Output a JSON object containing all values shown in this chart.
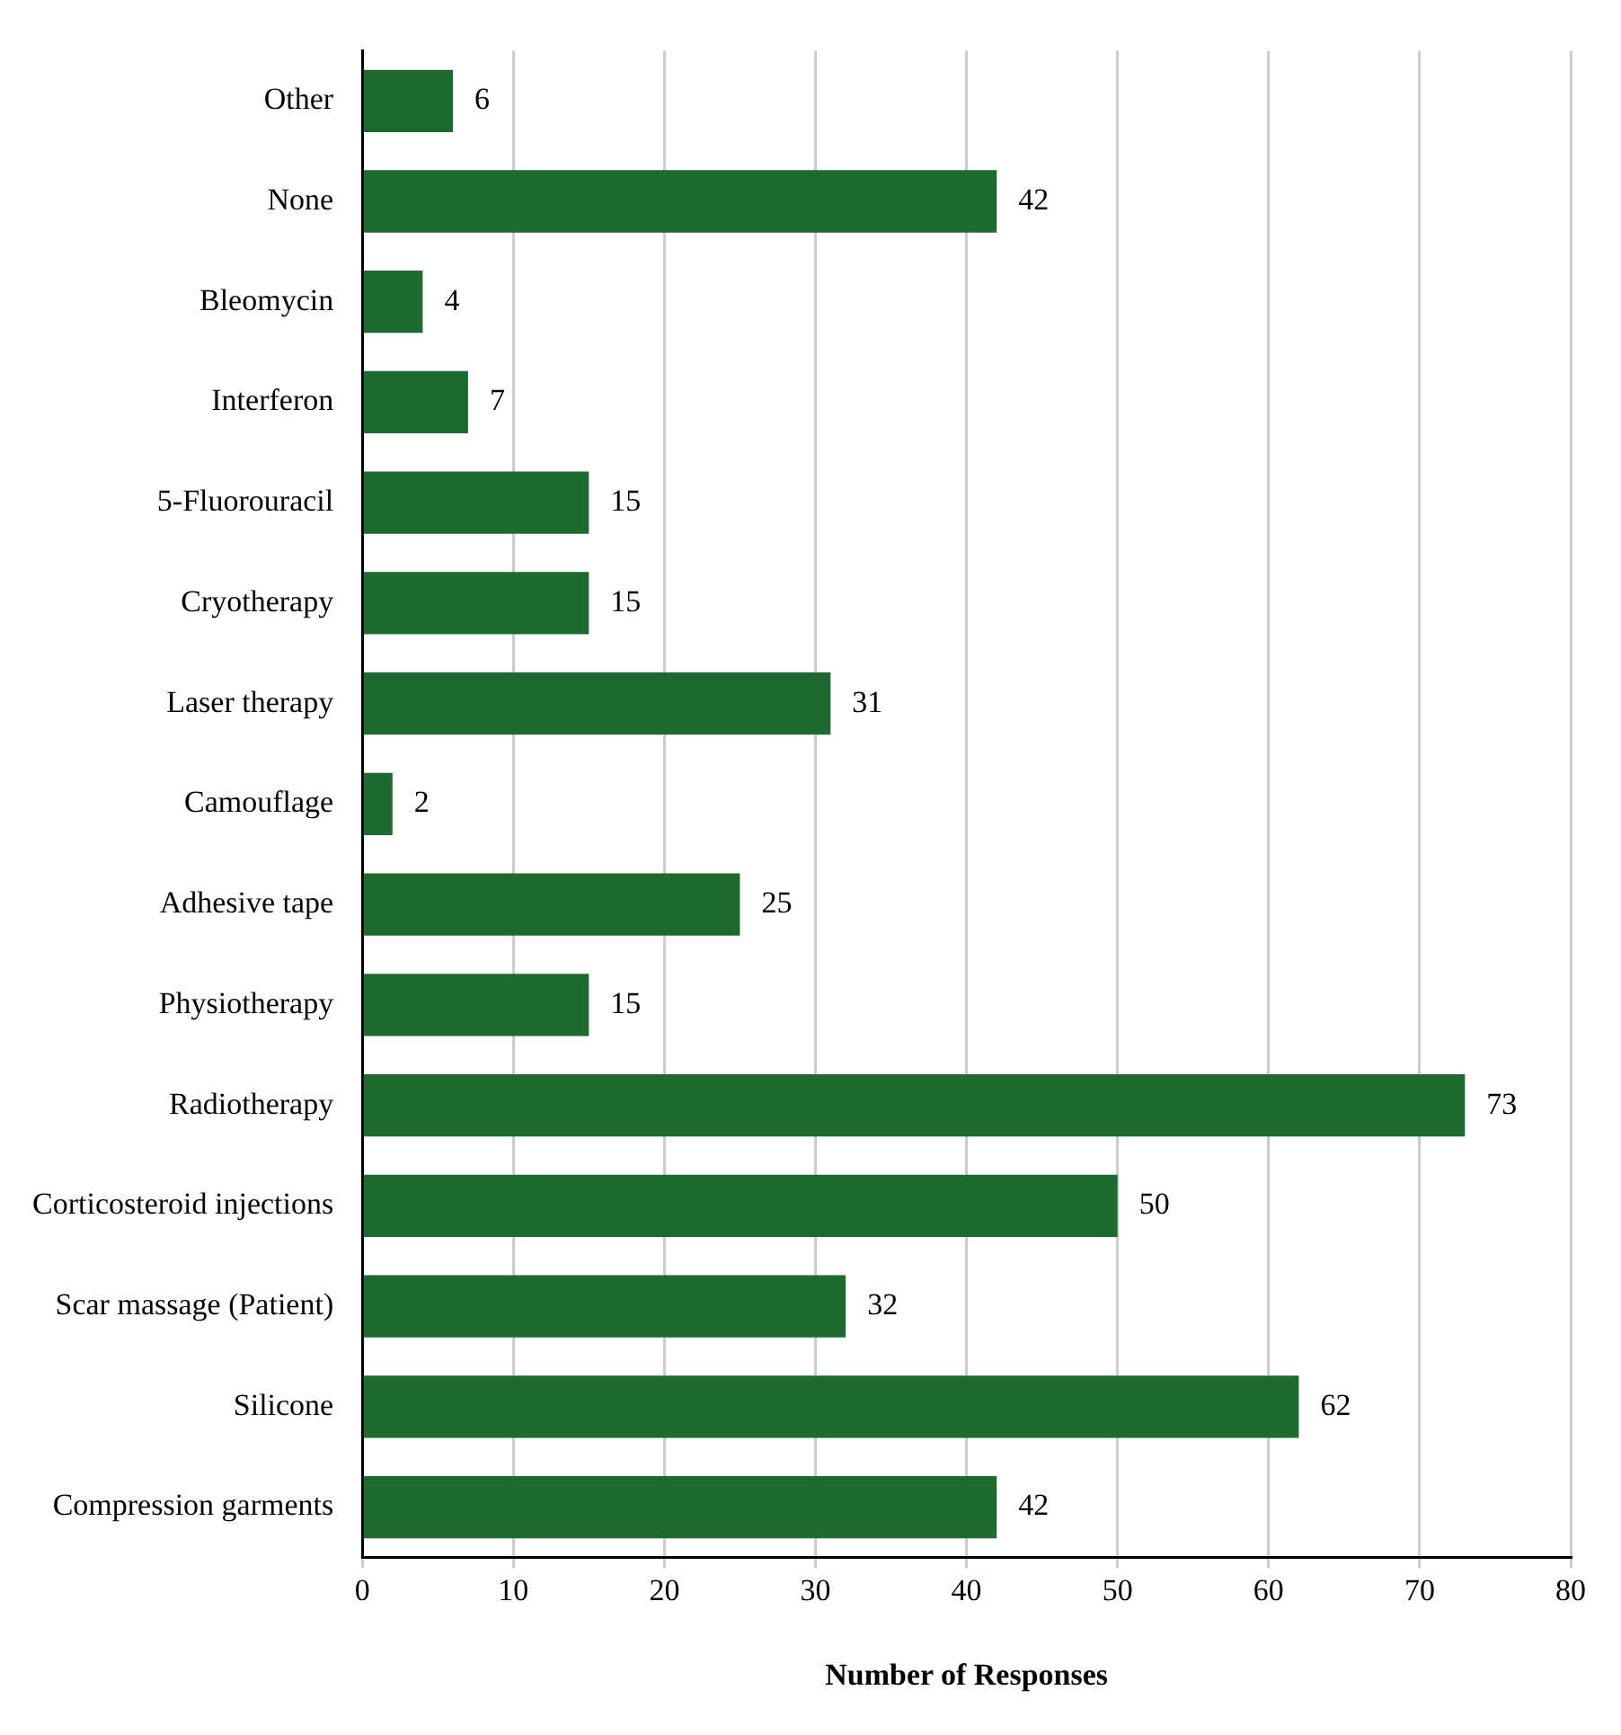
{
  "chart_data": {
    "type": "bar",
    "orientation": "horizontal",
    "xlabel": "Number of Responses",
    "categories": [
      "Other",
      "None",
      "Bleomycin",
      "Interferon",
      "5-Fluorouracil",
      "Cryotherapy",
      "Laser therapy",
      "Camouflage",
      "Adhesive tape",
      "Physiotherapy",
      "Radiotherapy",
      "Corticosteroid injections",
      "Scar massage (Patient)",
      "Silicone",
      "Compression garments"
    ],
    "values": [
      6,
      42,
      4,
      7,
      15,
      15,
      31,
      2,
      25,
      15,
      73,
      50,
      32,
      62,
      42
    ],
    "color": "#1f6b2f",
    "xlim": [
      0,
      80
    ],
    "xticks": [
      0,
      10,
      20,
      30,
      40,
      50,
      60,
      70,
      80
    ],
    "grid": "x",
    "data_labels": true,
    "legend": false
  }
}
